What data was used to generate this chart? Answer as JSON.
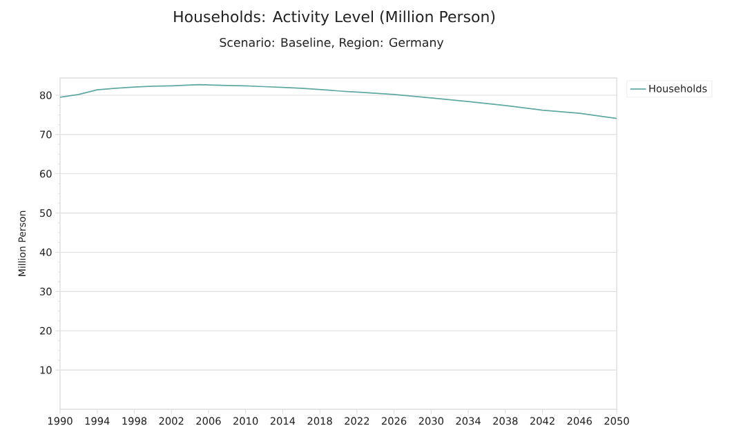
{
  "chart_data": {
    "type": "line",
    "title": "Households: Activity Level (Million Person)",
    "subtitle": "Scenario: Baseline, Region: Germany",
    "ylabel": "Million Person",
    "xlim": [
      1990,
      2050
    ],
    "xticks": [
      1990,
      1994,
      1998,
      2002,
      2006,
      2010,
      2014,
      2018,
      2022,
      2026,
      2030,
      2034,
      2038,
      2042,
      2046,
      2050
    ],
    "ylim": [
      0,
      84.4
    ],
    "yticks": [
      10,
      20,
      30,
      40,
      50,
      60,
      70,
      80
    ],
    "grid": "y",
    "legend": "top right",
    "marker": "none",
    "line_style": "solid",
    "series": [
      {
        "name": "Households",
        "color": "#5fa8a0",
        "x": [
          1990,
          1992,
          1994,
          1996,
          1998,
          2000,
          2002,
          2005,
          2008,
          2010,
          2012,
          2014,
          2016,
          2019,
          2020,
          2022,
          2026,
          2030,
          2034,
          2038,
          2042,
          2046,
          2050
        ],
        "values": [
          79.5,
          80.2,
          81.4,
          81.8,
          82.1,
          82.3,
          82.4,
          82.7,
          82.5,
          82.4,
          82.2,
          82.0,
          81.8,
          81.3,
          81.1,
          80.8,
          80.2,
          79.3,
          78.4,
          77.4,
          76.2,
          75.4,
          74.1
        ]
      }
    ]
  }
}
